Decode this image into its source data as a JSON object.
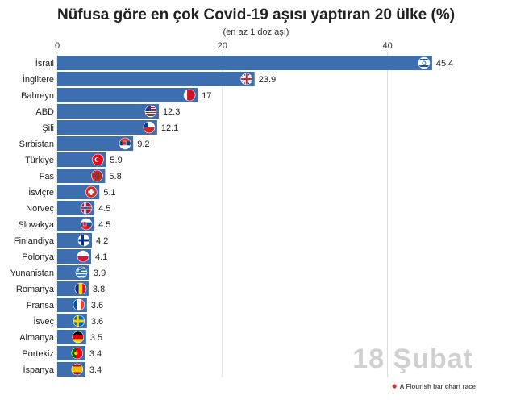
{
  "header": {
    "title": "Nüfusa göre en çok Covid-19 aşısı yaptıran 20 ülke (%)",
    "subtitle": "(en az 1 doz aşı)"
  },
  "date_label": "18 Şubat",
  "credit": "A Flourish bar chart race",
  "colors": {
    "bar": "#3d6fb0",
    "grid": "#d9d9d9",
    "text": "#222222"
  },
  "chart_data": {
    "type": "bar",
    "orientation": "horizontal",
    "categories": [
      "İsrail",
      "İngiltere",
      "Bahreyn",
      "ABD",
      "Şili",
      "Sırbistan",
      "Türkiye",
      "Fas",
      "İsviçre",
      "Norveç",
      "Slovakya",
      "Finlandiya",
      "Polonya",
      "Yunanistan",
      "Romanya",
      "Fransa",
      "İsveç",
      "Almanya",
      "Portekiz",
      "İspanya"
    ],
    "values": [
      45.4,
      23.9,
      17,
      12.3,
      12.1,
      9.2,
      5.9,
      5.8,
      5.1,
      4.5,
      4.5,
      4.2,
      4.1,
      3.9,
      3.8,
      3.6,
      3.6,
      3.5,
      3.4,
      3.4
    ],
    "value_labels": [
      "45.4",
      "23.9",
      "17",
      "12.3",
      "12.1",
      "9.2",
      "5.9",
      "5.8",
      "5.1",
      "4.5",
      "4.5",
      "4.2",
      "4.1",
      "3.9",
      "3.8",
      "3.6",
      "3.6",
      "3.5",
      "3.4",
      "3.4"
    ],
    "flags": [
      "israel-flag",
      "uk-flag",
      "bahrain-flag",
      "usa-flag",
      "chile-flag",
      "serbia-flag",
      "turkey-flag",
      "morocco-flag",
      "switzerland-flag",
      "norway-flag",
      "slovakia-flag",
      "finland-flag",
      "poland-flag",
      "greece-flag",
      "romania-flag",
      "france-flag",
      "sweden-flag",
      "germany-flag",
      "portugal-flag",
      "spain-flag"
    ],
    "xlim": [
      0,
      50
    ],
    "xticks": [
      0,
      20,
      40
    ],
    "tick_labels": [
      "0",
      "20",
      "40"
    ],
    "axis_position": "top",
    "grid": true
  }
}
